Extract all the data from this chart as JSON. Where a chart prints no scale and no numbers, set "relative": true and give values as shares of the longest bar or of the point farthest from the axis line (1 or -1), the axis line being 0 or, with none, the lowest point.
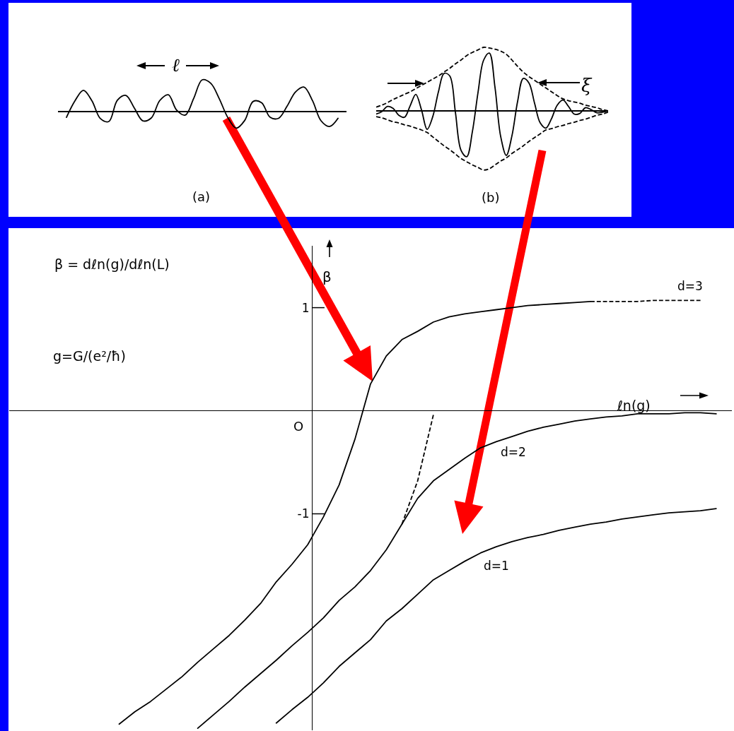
{
  "chart_data": [
    {
      "type": "line",
      "relative": true,
      "annotations": [
        "ℓ",
        "(a)"
      ],
      "categories": [
        null,
        null,
        null,
        null,
        null,
        null,
        null,
        null,
        null,
        null,
        null,
        null,
        null,
        null,
        null,
        null,
        null,
        null,
        null,
        null,
        null,
        null,
        null,
        null,
        null,
        null,
        null,
        null,
        null,
        null,
        null,
        null,
        null,
        null,
        null
      ],
      "series": [
        {
          "color": "#000000",
          "values": [
            null,
            -0.18,
            0.34,
            0.67,
            0.34,
            -0.22,
            -0.31,
            0.36,
            0.51,
            0.11,
            -0.29,
            -0.2,
            0.35,
            0.53,
            0.04,
            -0.11,
            0.42,
            1.0,
            0.89,
            0.41,
            -0.18,
            -0.52,
            -0.28,
            0.32,
            0.28,
            -0.18,
            -0.21,
            0.17,
            0.62,
            0.77,
            0.34,
            -0.29,
            -0.47,
            -0.21,
            null
          ]
        }
      ]
    },
    {
      "type": "line",
      "relative": true,
      "annotations": [
        "ξ",
        "(b)"
      ],
      "categories": [
        null,
        null,
        null,
        null,
        null,
        null,
        null,
        null,
        null,
        null,
        null,
        null,
        null,
        null,
        null,
        null,
        null,
        null,
        null,
        null,
        null,
        null,
        null,
        null,
        null,
        null,
        null,
        null,
        null,
        null,
        null,
        null,
        null,
        null,
        null,
        null,
        null,
        null,
        null,
        null,
        null,
        null
      ],
      "series": [
        {
          "color": "#000000",
          "values": [
            -0.05,
            -0.01,
            0.07,
            0.04,
            -0.07,
            -0.1,
            0.08,
            0.26,
            0.02,
            -0.29,
            -0.09,
            0.3,
            0.59,
            0.55,
            -0.02,
            -0.62,
            -0.72,
            -0.33,
            0.29,
            0.8,
            0.91,
            0.37,
            -0.4,
            -0.7,
            -0.39,
            0.15,
            0.51,
            0.44,
            0.12,
            -0.19,
            -0.27,
            -0.12,
            0.09,
            0.17,
            0.07,
            -0.05,
            -0.04,
            0.05,
            0.02,
            -0.03,
            -0.02,
            0.0
          ]
        },
        {
          "color": "#000000",
          "line_style": "dashed",
          "values": [
            0.06,
            0.09,
            0.13,
            0.18,
            0.22,
            0.26,
            0.3,
            0.35,
            0.4,
            0.45,
            0.5,
            0.55,
            0.61,
            0.67,
            0.74,
            0.8,
            0.87,
            0.92,
            0.96,
            1.0,
            0.99,
            0.97,
            0.94,
            0.89,
            0.8,
            0.7,
            0.61,
            0.54,
            0.48,
            0.42,
            0.36,
            0.3,
            0.24,
            0.19,
            0.16,
            0.14,
            0.12,
            0.09,
            0.07,
            0.05,
            0.02,
            0.0
          ]
        },
        {
          "color": "#000000",
          "line_style": "dashed",
          "values": [
            -0.09,
            -0.11,
            -0.14,
            -0.17,
            -0.19,
            -0.22,
            -0.24,
            -0.27,
            -0.3,
            -0.34,
            -0.41,
            -0.48,
            -0.55,
            -0.61,
            -0.68,
            -0.75,
            -0.8,
            -0.85,
            -0.89,
            -0.93,
            -0.91,
            -0.85,
            -0.79,
            -0.74,
            -0.67,
            -0.61,
            -0.55,
            -0.48,
            -0.42,
            -0.36,
            -0.3,
            -0.28,
            -0.25,
            -0.23,
            -0.2,
            -0.18,
            -0.15,
            -0.13,
            -0.1,
            -0.07,
            -0.05,
            -0.02
          ]
        }
      ]
    },
    {
      "type": "line",
      "xlabel": "ℓn(g)",
      "ylabel": "β",
      "annotations": [
        "β = dℓn(g)/dℓn(L)",
        "g=G/(e²/ħ)",
        "O"
      ],
      "categories": [
        null,
        null,
        null,
        null,
        null,
        null,
        null,
        null,
        null,
        null,
        null,
        null,
        null,
        null,
        null,
        null,
        null,
        null,
        null,
        null,
        null,
        null,
        null,
        null,
        null,
        null,
        null,
        null,
        null,
        null,
        null,
        null,
        null,
        null,
        null,
        null,
        null,
        null,
        null,
        null,
        null,
        null,
        null,
        null,
        null,
        null,
        null
      ],
      "series": [
        {
          "color": "#000000",
          "values": [
            null,
            null,
            null,
            null,
            null,
            null,
            null,
            -3.04,
            -2.92,
            -2.82,
            -2.7,
            -2.58,
            -2.44,
            -2.31,
            -2.18,
            -2.03,
            -1.87,
            -1.66,
            -1.49,
            -1.3,
            -1.03,
            -0.72,
            -0.28,
            0.26,
            0.53,
            0.69,
            0.77,
            0.86,
            0.91,
            0.94,
            0.96,
            0.98,
            1.0,
            1.02,
            1.03,
            1.04,
            1.05,
            1.06,
            null,
            null,
            null,
            null,
            null,
            null,
            null,
            null,
            null
          ]
        },
        {
          "name": "d=3",
          "color": "#000000",
          "line_style": "dashed",
          "values": [
            null,
            null,
            null,
            null,
            null,
            null,
            null,
            null,
            null,
            null,
            null,
            null,
            null,
            null,
            null,
            null,
            null,
            null,
            null,
            null,
            null,
            null,
            null,
            null,
            null,
            null,
            null,
            null,
            null,
            null,
            null,
            null,
            null,
            null,
            null,
            null,
            null,
            1.06,
            1.06,
            1.06,
            1.06,
            1.07,
            1.07,
            1.07,
            1.07,
            null,
            null
          ]
        },
        {
          "name": "d=2",
          "color": "#000000",
          "values": [
            null,
            null,
            null,
            null,
            null,
            null,
            null,
            null,
            null,
            null,
            null,
            null,
            -3.08,
            -2.95,
            -2.82,
            -2.68,
            -2.55,
            -2.42,
            -2.28,
            -2.15,
            -2.01,
            -1.84,
            -1.71,
            -1.55,
            -1.35,
            -1.1,
            -0.85,
            -0.68,
            -0.57,
            -0.46,
            -0.36,
            -0.3,
            -0.25,
            -0.2,
            -0.16,
            -0.13,
            -0.1,
            -0.08,
            -0.06,
            -0.05,
            -0.03,
            -0.03,
            -0.03,
            -0.02,
            -0.02,
            -0.03,
            null
          ]
        },
        {
          "color": "#000000",
          "line_style": "dashed",
          "values": [
            null,
            null,
            null,
            null,
            null,
            null,
            null,
            null,
            null,
            null,
            null,
            null,
            null,
            null,
            null,
            null,
            null,
            null,
            null,
            null,
            null,
            null,
            null,
            null,
            null,
            -1.1,
            -0.68,
            -0.04,
            null,
            null,
            null,
            null,
            null,
            null,
            null,
            null,
            null,
            null,
            null,
            null,
            null,
            null,
            null,
            null,
            null,
            null,
            null
          ]
        },
        {
          "name": "d=1",
          "color": "#000000",
          "values": [
            null,
            null,
            null,
            null,
            null,
            null,
            null,
            null,
            null,
            null,
            null,
            null,
            null,
            null,
            null,
            null,
            null,
            -3.03,
            -2.9,
            -2.78,
            -2.64,
            -2.48,
            -2.35,
            -2.22,
            -2.04,
            -1.92,
            -1.78,
            -1.64,
            -1.55,
            -1.46,
            -1.38,
            -1.32,
            -1.27,
            -1.23,
            -1.2,
            -1.16,
            -1.13,
            -1.1,
            -1.08,
            -1.05,
            -1.03,
            -1.01,
            -0.99,
            -0.98,
            -0.97,
            -0.95,
            null
          ]
        }
      ],
      "ylim": [
        -3.1,
        1.6
      ],
      "yticks": [
        1,
        -1
      ],
      "tick_labels": "y",
      "line_style": "solid"
    }
  ]
}
